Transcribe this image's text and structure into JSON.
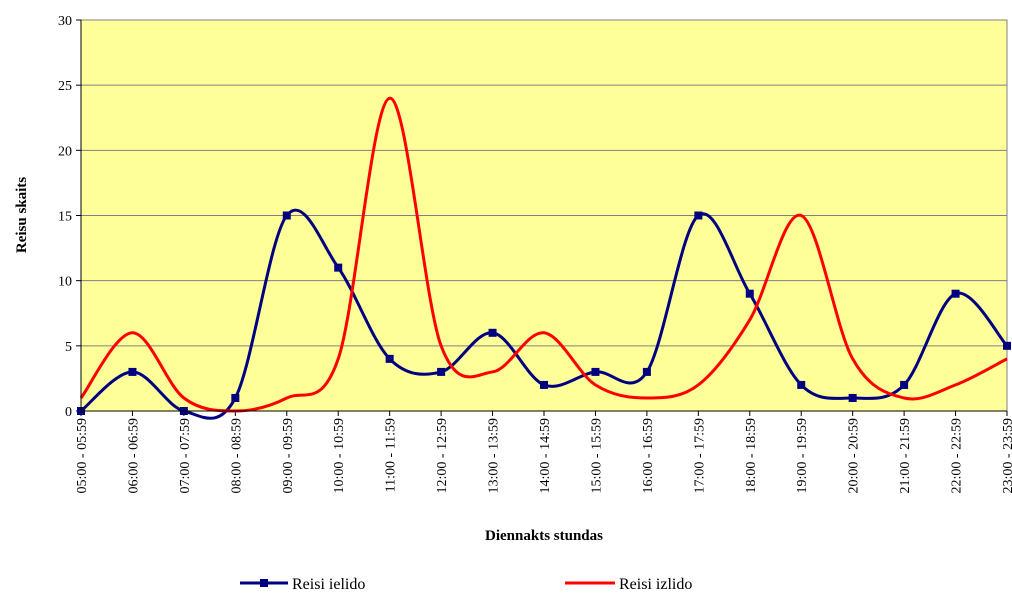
{
  "chart_data": {
    "type": "line",
    "categories": [
      "05:00 - 05:59",
      "06:00 - 06:59",
      "07:00 - 07:59",
      "08:00 - 08:59",
      "09:00 - 09:59",
      "10:00 - 10:59",
      "11:00 - 11:59",
      "12:00 - 12:59",
      "13:00 - 13:59",
      "14:00 - 14:59",
      "15:00 - 15:59",
      "16:00 - 16:59",
      "17:00 - 17:59",
      "18:00 - 18:59",
      "19:00 - 19:59",
      "20:00 - 20:59",
      "21:00 - 21:59",
      "22:00 - 22:59",
      "23:00 - 23:59"
    ],
    "series": [
      {
        "name": "Reisi ielido",
        "color": "#000080",
        "marker": "square",
        "values": [
          0,
          3,
          0,
          1,
          15,
          11,
          4,
          3,
          6,
          2,
          3,
          3,
          15,
          9,
          2,
          1,
          2,
          9,
          5
        ]
      },
      {
        "name": "Reisi izlido",
        "color": "#ff0000",
        "marker": "none",
        "values": [
          1,
          6,
          1,
          0,
          1,
          4,
          24,
          5,
          3,
          6,
          2,
          1,
          2,
          7,
          15,
          4,
          1,
          2,
          4
        ]
      }
    ],
    "xlabel": "Diennakts stundas",
    "ylabel": "Reisu skaits",
    "ylim": [
      0,
      30
    ],
    "yticks": [
      0,
      5,
      10,
      15,
      20,
      25,
      30
    ],
    "grid": true,
    "plot_background": "#ffff99",
    "legend_position": "bottom"
  }
}
